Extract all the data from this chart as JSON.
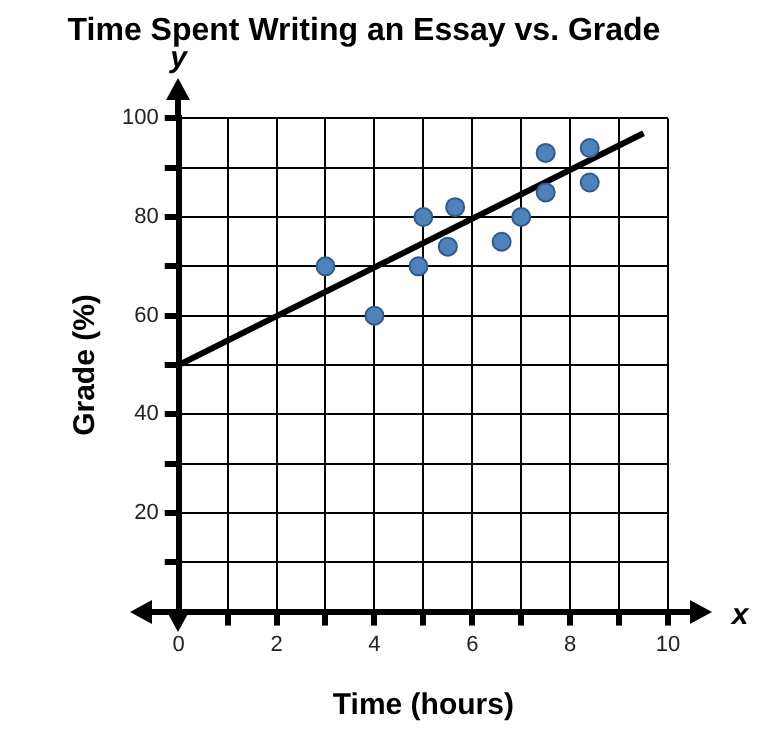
{
  "chart_data": {
    "type": "scatter",
    "title": "Time Spent Writing an Essay vs. Grade",
    "xlabel": "Time (hours)",
    "ylabel": "Grade (%)",
    "series": [
      {
        "color": "#4f81bd",
        "x": [
          3,
          4,
          4.9,
          5,
          5.5,
          5.65,
          6.6,
          7,
          7.5,
          7.5,
          8.4,
          8.4
        ],
        "values": [
          70,
          60,
          70,
          80,
          74,
          82,
          75,
          80,
          93,
          85,
          94,
          87
        ]
      },
      {
        "type": "line",
        "marker": "none",
        "color": "#000000",
        "x": [
          0,
          9.5
        ],
        "values": [
          50,
          97
        ]
      }
    ],
    "xlim": [
      0,
      10
    ],
    "xticks": [
      0,
      {
        "value": 1,
        "label": null
      },
      2,
      {
        "value": 3,
        "label": null
      },
      4,
      {
        "value": 5,
        "label": null
      },
      6,
      {
        "value": 7,
        "label": null
      },
      8,
      {
        "value": 9,
        "label": null
      },
      10
    ],
    "ylim": [
      0,
      100
    ],
    "yticks": [
      {
        "value": 10,
        "label": null
      },
      20,
      {
        "value": 30,
        "label": null
      },
      40,
      {
        "value": 50,
        "label": null
      },
      60,
      {
        "value": 70,
        "label": null
      },
      80,
      {
        "value": 90,
        "label": null
      },
      100
    ],
    "grid": true,
    "marker": "circle",
    "line_style": "solid",
    "annotations": [
      "x",
      "y"
    ]
  }
}
